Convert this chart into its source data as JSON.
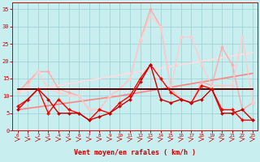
{
  "bg_color": "#c8eef0",
  "grid_color": "#a0d4d8",
  "xlabel": "Vent moyen/en rafales ( km/h )",
  "xlabel_color": "#cc0000",
  "tick_color": "#cc0000",
  "xlim": [
    -0.5,
    23.5
  ],
  "ylim": [
    0,
    37
  ],
  "yticks": [
    0,
    5,
    10,
    15,
    20,
    25,
    30,
    35
  ],
  "xticks": [
    0,
    1,
    2,
    3,
    4,
    5,
    6,
    7,
    8,
    9,
    10,
    11,
    12,
    13,
    14,
    15,
    16,
    17,
    18,
    19,
    20,
    21,
    22,
    23
  ],
  "lines": [
    {
      "x": [
        0,
        1,
        2,
        3,
        4,
        5,
        6,
        7,
        8,
        9,
        10,
        11,
        12,
        13,
        14,
        15,
        16,
        17,
        18,
        19,
        20,
        21,
        22,
        23
      ],
      "y": [
        12,
        12,
        12,
        12,
        12,
        12,
        12,
        12,
        12,
        12,
        12,
        12,
        12,
        12,
        12,
        12,
        12,
        12,
        12,
        12,
        12,
        12,
        12,
        12
      ],
      "color": "#220000",
      "lw": 1.4,
      "marker": null,
      "zorder": 7
    },
    {
      "x": [
        0,
        1,
        2,
        3,
        4,
        5,
        6,
        7,
        8,
        9,
        10,
        11,
        12,
        13,
        14,
        15,
        16,
        17,
        18,
        19,
        20,
        21,
        22,
        23
      ],
      "y": [
        12,
        12,
        12,
        12,
        12,
        12,
        12,
        12,
        12,
        12,
        12,
        12,
        12,
        12,
        12,
        12,
        12,
        12,
        12,
        12,
        12,
        12,
        12,
        12
      ],
      "color": "#660000",
      "lw": 1.2,
      "marker": null,
      "zorder": 7
    },
    {
      "x": [
        0,
        1,
        2,
        3,
        4,
        5,
        6,
        7,
        8,
        9,
        10,
        11,
        12,
        13,
        14,
        15,
        16,
        17,
        18,
        19,
        20,
        21,
        22,
        23
      ],
      "y": [
        7,
        9,
        12,
        5,
        9,
        6,
        5,
        3,
        6,
        5,
        8,
        10,
        15,
        19,
        15,
        11,
        9,
        8,
        13,
        12,
        6,
        6,
        3,
        3
      ],
      "color": "#ff0000",
      "lw": 1.0,
      "marker": "D",
      "ms": 2.0,
      "zorder": 8
    },
    {
      "x": [
        0,
        1,
        2,
        3,
        4,
        5,
        6,
        7,
        8,
        9,
        10,
        11,
        12,
        13,
        14,
        15,
        16,
        17,
        18,
        19,
        20,
        21,
        22,
        23
      ],
      "y": [
        6,
        9,
        12,
        9,
        5,
        5,
        5,
        3,
        4,
        5,
        7,
        9,
        14,
        19,
        9,
        8,
        9,
        8,
        9,
        12,
        5,
        5,
        6,
        3
      ],
      "color": "#cc0000",
      "lw": 1.0,
      "marker": "D",
      "ms": 2.0,
      "zorder": 8
    },
    {
      "x": [
        0,
        1,
        2,
        3,
        4,
        5,
        6,
        7,
        8,
        9,
        10,
        11,
        12,
        13,
        14,
        15,
        16,
        17,
        18,
        19,
        20,
        21,
        22,
        23
      ],
      "y": [
        11,
        14,
        17,
        17,
        12,
        11,
        10,
        6,
        6,
        10,
        12,
        15,
        26,
        35,
        30,
        12,
        9,
        8,
        14,
        13,
        24,
        19,
        6,
        8
      ],
      "color": "#ffaaaa",
      "lw": 1.0,
      "marker": "D",
      "ms": 2.0,
      "zorder": 5
    },
    {
      "x": [
        0,
        1,
        2,
        3,
        4,
        5,
        6,
        7,
        8,
        9,
        10,
        11,
        12,
        13,
        14,
        15,
        16,
        17,
        18,
        19,
        20,
        21,
        22,
        23
      ],
      "y": [
        11,
        13,
        17,
        12,
        11,
        10,
        10,
        6,
        6,
        10,
        12,
        15,
        26,
        33,
        30,
        12,
        27,
        27,
        19,
        13,
        13,
        13,
        27,
        8
      ],
      "color": "#ffcccc",
      "lw": 1.0,
      "marker": "D",
      "ms": 2.0,
      "zorder": 5
    },
    {
      "x": [
        0,
        1,
        2,
        3,
        4,
        5,
        6,
        7,
        8,
        9,
        10,
        11,
        12,
        13,
        14,
        15,
        16,
        17,
        18,
        19,
        20,
        21,
        22,
        23
      ],
      "y": [
        6.0,
        6.4,
        6.8,
        7.2,
        7.6,
        8.0,
        8.4,
        8.8,
        9.2,
        9.6,
        10.0,
        10.5,
        11.0,
        11.5,
        12.0,
        12.5,
        13.0,
        13.5,
        14.0,
        14.5,
        15.0,
        15.5,
        16.0,
        16.5
      ],
      "color": "#ff8888",
      "lw": 1.3,
      "marker": null,
      "zorder": 4
    },
    {
      "x": [
        0,
        1,
        2,
        3,
        4,
        5,
        6,
        7,
        8,
        9,
        10,
        11,
        12,
        13,
        14,
        15,
        16,
        17,
        18,
        19,
        20,
        21,
        22,
        23
      ],
      "y": [
        11.0,
        11.5,
        12.0,
        12.5,
        13.0,
        13.5,
        14.0,
        14.5,
        15.0,
        15.5,
        16.0,
        16.5,
        17.0,
        17.5,
        18.0,
        18.5,
        19.0,
        19.5,
        20.0,
        20.5,
        21.0,
        21.5,
        22.0,
        22.5
      ],
      "color": "#ffdddd",
      "lw": 1.3,
      "marker": null,
      "zorder": 4
    }
  ],
  "arrow_color": "#cc0000",
  "arrow_angles": [
    0,
    0,
    0,
    0,
    0,
    0,
    15,
    0,
    0,
    0,
    0,
    45,
    45,
    45,
    45,
    15,
    45,
    45,
    90,
    45,
    45,
    15,
    15,
    15
  ]
}
